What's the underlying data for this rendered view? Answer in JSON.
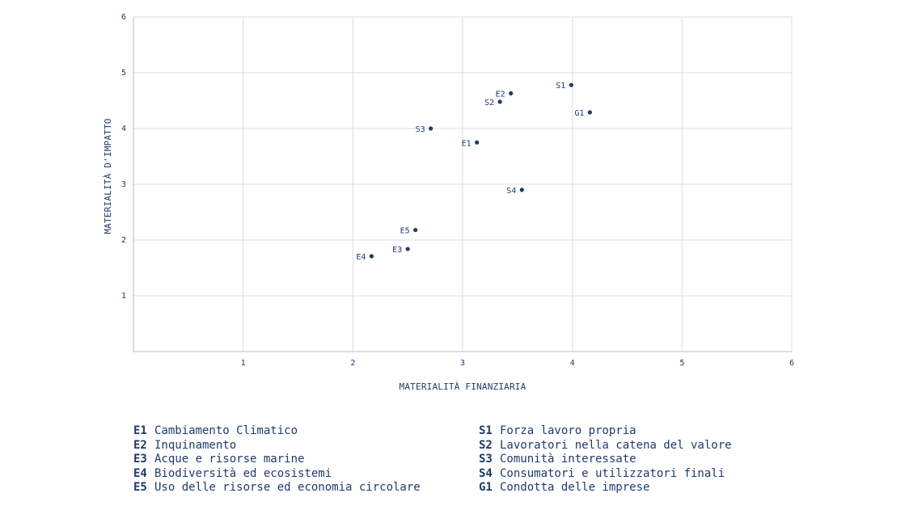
{
  "chart_data": {
    "type": "scatter",
    "xlabel": "MATERIALITÀ FINANZIARIA",
    "ylabel": "MATERIALITÀ D'IMPATTO",
    "xlim": [
      0,
      6
    ],
    "ylim": [
      0,
      6
    ],
    "xticks": [
      "1",
      "2",
      "3",
      "4",
      "5",
      "6"
    ],
    "yticks": [
      "1",
      "2",
      "3",
      "4",
      "5",
      "6"
    ],
    "grid": true,
    "points": [
      {
        "label": "S1",
        "x": 3.99,
        "y": 4.78
      },
      {
        "label": "E2",
        "x": 3.44,
        "y": 4.63
      },
      {
        "label": "S2",
        "x": 3.34,
        "y": 4.48
      },
      {
        "label": "G1",
        "x": 4.16,
        "y": 4.29
      },
      {
        "label": "S3",
        "x": 2.71,
        "y": 4.0
      },
      {
        "label": "E1",
        "x": 3.13,
        "y": 3.75
      },
      {
        "label": "S4",
        "x": 3.54,
        "y": 2.9
      },
      {
        "label": "E5",
        "x": 2.57,
        "y": 2.18
      },
      {
        "label": "E3",
        "x": 2.5,
        "y": 1.84
      },
      {
        "label": "E4",
        "x": 2.17,
        "y": 1.71
      }
    ],
    "colors": {
      "ink": "#1f3a6b",
      "grid": "#dcdcdc",
      "axis": "#bdbdbd"
    }
  },
  "legend": {
    "left": [
      {
        "code": "E1",
        "text": "Cambiamento Climatico"
      },
      {
        "code": "E2",
        "text": "Inquinamento"
      },
      {
        "code": "E3",
        "text": "Acque e risorse marine"
      },
      {
        "code": "E4",
        "text": "Biodiversità ed ecosistemi"
      },
      {
        "code": "E5",
        "text": "Uso delle risorse ed economia circolare"
      }
    ],
    "right": [
      {
        "code": "S1",
        "text": "Forza lavoro propria"
      },
      {
        "code": "S2",
        "text": "Lavoratori nella catena del valore"
      },
      {
        "code": "S3",
        "text": "Comunità interessate"
      },
      {
        "code": "S4",
        "text": "Consumatori e utilizzatori finali"
      },
      {
        "code": "G1",
        "text": "Condotta delle imprese"
      }
    ]
  }
}
